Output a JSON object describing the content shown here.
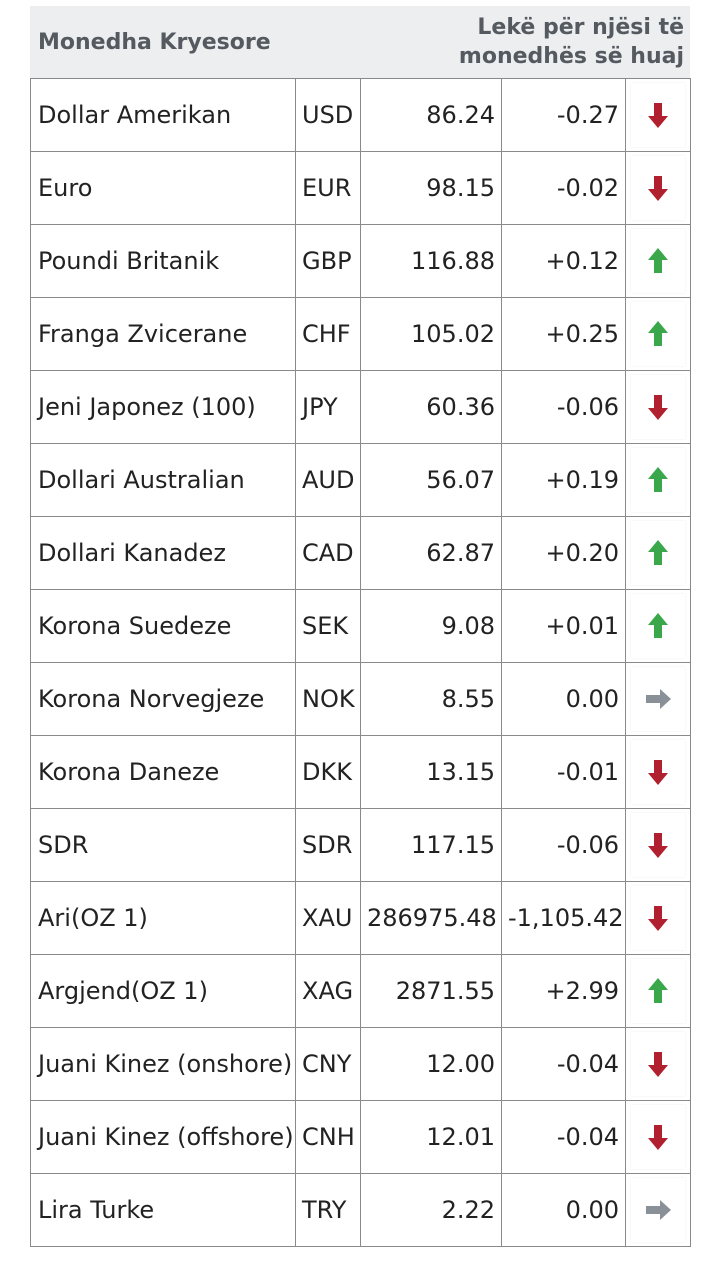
{
  "header": {
    "left": "Monedha Kryesore",
    "right_line1": "Lekë për njësi të",
    "right_line2": "monedhës së huaj"
  },
  "colors": {
    "down": "#b0202e",
    "up": "#3aa84a",
    "flat": "#8a9097"
  },
  "rows": [
    {
      "name": "Dollar Amerikan",
      "code": "USD",
      "rate": "86.24",
      "change": "-0.27",
      "trend": "down"
    },
    {
      "name": "Euro",
      "code": "EUR",
      "rate": "98.15",
      "change": "-0.02",
      "trend": "down"
    },
    {
      "name": "Poundi Britanik",
      "code": "GBP",
      "rate": "116.88",
      "change": "+0.12",
      "trend": "up"
    },
    {
      "name": "Franga Zvicerane",
      "code": "CHF",
      "rate": "105.02",
      "change": "+0.25",
      "trend": "up"
    },
    {
      "name": "Jeni Japonez (100)",
      "code": "JPY",
      "rate": "60.36",
      "change": "-0.06",
      "trend": "down"
    },
    {
      "name": "Dollari Australian",
      "code": "AUD",
      "rate": "56.07",
      "change": "+0.19",
      "trend": "up"
    },
    {
      "name": "Dollari Kanadez",
      "code": "CAD",
      "rate": "62.87",
      "change": "+0.20",
      "trend": "up"
    },
    {
      "name": "Korona Suedeze",
      "code": "SEK",
      "rate": "9.08",
      "change": "+0.01",
      "trend": "up"
    },
    {
      "name": "Korona Norvegjeze",
      "code": "NOK",
      "rate": "8.55",
      "change": "0.00",
      "trend": "flat"
    },
    {
      "name": "Korona Daneze",
      "code": "DKK",
      "rate": "13.15",
      "change": "-0.01",
      "trend": "down"
    },
    {
      "name": "SDR",
      "code": "SDR",
      "rate": "117.15",
      "change": "-0.06",
      "trend": "down"
    },
    {
      "name": "Ari(OZ 1)",
      "code": "XAU",
      "rate": "286975.48",
      "change": "-1,105.42",
      "trend": "down"
    },
    {
      "name": "Argjend(OZ 1)",
      "code": "XAG",
      "rate": "2871.55",
      "change": "+2.99",
      "trend": "up"
    },
    {
      "name": "Juani Kinez (onshore)",
      "code": "CNY",
      "rate": "12.00",
      "change": "-0.04",
      "trend": "down"
    },
    {
      "name": "Juani Kinez (offshore)",
      "code": "CNH",
      "rate": "12.01",
      "change": "-0.04",
      "trend": "down"
    },
    {
      "name": "Lira Turke",
      "code": "TRY",
      "rate": "2.22",
      "change": "0.00",
      "trend": "flat"
    }
  ]
}
